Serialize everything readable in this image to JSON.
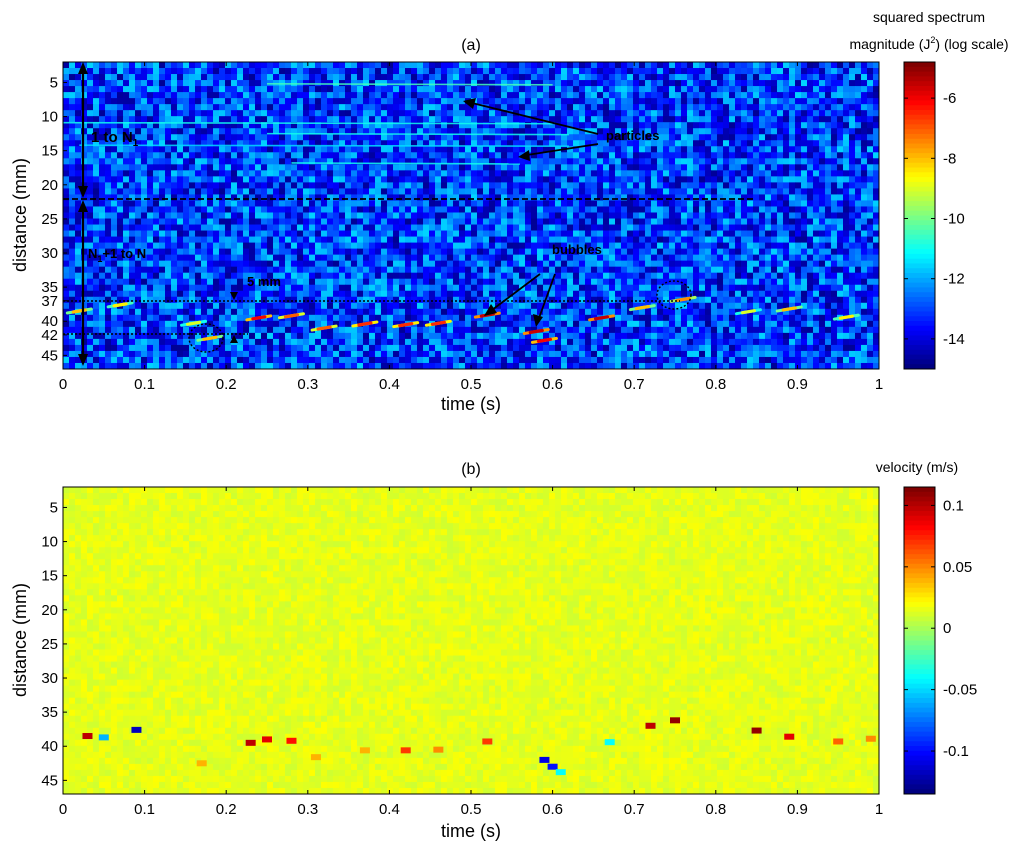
{
  "chart_data": [
    {
      "type": "heatmap",
      "panel_label": "(a)",
      "xlabel": "time (s)",
      "ylabel": "distance (mm)",
      "xlim": [
        0,
        1
      ],
      "ylim": [
        47,
        2
      ],
      "y_direction": "reversed",
      "xticks": [
        "0",
        "0.1",
        "0.2",
        "0.3",
        "0.4",
        "0.5",
        "0.6",
        "0.7",
        "0.8",
        "0.9",
        "1"
      ],
      "yticks": [
        "5",
        "10",
        "15",
        "20",
        "25",
        "30",
        "35",
        "37",
        "40",
        "42",
        "45"
      ],
      "colorbar": {
        "title_line1": "squared spectrum",
        "title_line2_pre": "magnitude (J",
        "title_sup": "2",
        "title_line2_post": ") (log scale)",
        "range": [
          -15,
          -4.8
        ],
        "ticks": [
          "-6",
          "-8",
          "-10",
          "-12",
          "-14"
        ]
      },
      "background_level": -13.2,
      "particle_traces": [
        {
          "t0": 0.25,
          "t1": 0.6,
          "d": 5.2,
          "level": -10.5
        },
        {
          "t0": 0.0,
          "t1": 0.6,
          "d": 10.9,
          "level": -11
        },
        {
          "t0": 0.25,
          "t1": 0.62,
          "d": 12.5,
          "level": -11
        },
        {
          "t0": 0.02,
          "t1": 0.62,
          "d": 14.2,
          "level": -11.5
        },
        {
          "t0": 0.28,
          "t1": 0.56,
          "d": 16.8,
          "level": -11
        }
      ],
      "bubble_echoes": [
        {
          "t": 0.02,
          "d": 38.5,
          "level": -8
        },
        {
          "t": 0.07,
          "d": 37.6,
          "level": -8.5
        },
        {
          "t": 0.16,
          "d": 40.3,
          "level": -9
        },
        {
          "t": 0.18,
          "d": 42.5,
          "level": -8
        },
        {
          "t": 0.24,
          "d": 39.5,
          "level": -6
        },
        {
          "t": 0.28,
          "d": 39.2,
          "level": -7
        },
        {
          "t": 0.32,
          "d": 41.0,
          "level": -7
        },
        {
          "t": 0.37,
          "d": 40.4,
          "level": -6.5
        },
        {
          "t": 0.42,
          "d": 40.5,
          "level": -6.5
        },
        {
          "t": 0.46,
          "d": 40.3,
          "level": -6.5
        },
        {
          "t": 0.52,
          "d": 39.1,
          "level": -5.5
        },
        {
          "t": 0.58,
          "d": 41.5,
          "level": -5.5
        },
        {
          "t": 0.59,
          "d": 42.8,
          "level": -6
        },
        {
          "t": 0.66,
          "d": 39.5,
          "level": -5.5
        },
        {
          "t": 0.71,
          "d": 38.0,
          "level": -8
        },
        {
          "t": 0.76,
          "d": 36.8,
          "level": -7.5
        },
        {
          "t": 0.84,
          "d": 38.6,
          "level": -9
        },
        {
          "t": 0.89,
          "d": 38.2,
          "level": -8
        },
        {
          "t": 0.96,
          "d": 39.4,
          "level": -8.5
        }
      ],
      "annotations": {
        "range1": "1 to N",
        "range1_sub": "1",
        "range2_sub": "1",
        "range2_post": "+1 to N",
        "particles": "particles",
        "bubbles": "bubbles",
        "spacing": "5 mm"
      },
      "separator_distance": 22.5,
      "dotted_guides": [
        37,
        42
      ]
    },
    {
      "type": "heatmap",
      "panel_label": "(b)",
      "xlabel": "time (s)",
      "ylabel": "distance (mm)",
      "xlim": [
        0,
        1
      ],
      "ylim": [
        47,
        2
      ],
      "y_direction": "reversed",
      "xticks": [
        "0",
        "0.1",
        "0.2",
        "0.3",
        "0.4",
        "0.5",
        "0.6",
        "0.7",
        "0.8",
        "0.9",
        "1"
      ],
      "yticks": [
        "5",
        "10",
        "15",
        "20",
        "25",
        "30",
        "35",
        "40",
        "45"
      ],
      "colorbar": {
        "title": "velocity (m/s)",
        "range": [
          -0.135,
          0.115
        ],
        "ticks": [
          "0.1",
          "0.05",
          "0",
          "-0.05",
          "-0.1"
        ]
      },
      "background_value": 0.015,
      "velocity_spots": [
        {
          "t": 0.03,
          "d": 38.5,
          "v": 0.1
        },
        {
          "t": 0.05,
          "d": 38.7,
          "v": -0.06
        },
        {
          "t": 0.09,
          "d": 37.6,
          "v": -0.12
        },
        {
          "t": 0.17,
          "d": 42.5,
          "v": 0.04
        },
        {
          "t": 0.23,
          "d": 39.5,
          "v": 0.1
        },
        {
          "t": 0.25,
          "d": 39.0,
          "v": 0.09
        },
        {
          "t": 0.28,
          "d": 39.2,
          "v": 0.08
        },
        {
          "t": 0.31,
          "d": 41.6,
          "v": 0.04
        },
        {
          "t": 0.37,
          "d": 40.6,
          "v": 0.04
        },
        {
          "t": 0.42,
          "d": 40.6,
          "v": 0.07
        },
        {
          "t": 0.46,
          "d": 40.5,
          "v": 0.05
        },
        {
          "t": 0.52,
          "d": 39.3,
          "v": 0.07
        },
        {
          "t": 0.59,
          "d": 42.0,
          "v": -0.11
        },
        {
          "t": 0.6,
          "d": 43.0,
          "v": -0.1
        },
        {
          "t": 0.61,
          "d": 43.8,
          "v": -0.04
        },
        {
          "t": 0.67,
          "d": 39.4,
          "v": -0.04
        },
        {
          "t": 0.72,
          "d": 37.0,
          "v": 0.1
        },
        {
          "t": 0.75,
          "d": 36.2,
          "v": 0.11
        },
        {
          "t": 0.85,
          "d": 37.7,
          "v": 0.11
        },
        {
          "t": 0.89,
          "d": 38.6,
          "v": 0.09
        },
        {
          "t": 0.95,
          "d": 39.3,
          "v": 0.06
        },
        {
          "t": 0.99,
          "d": 38.9,
          "v": 0.05
        }
      ]
    }
  ]
}
